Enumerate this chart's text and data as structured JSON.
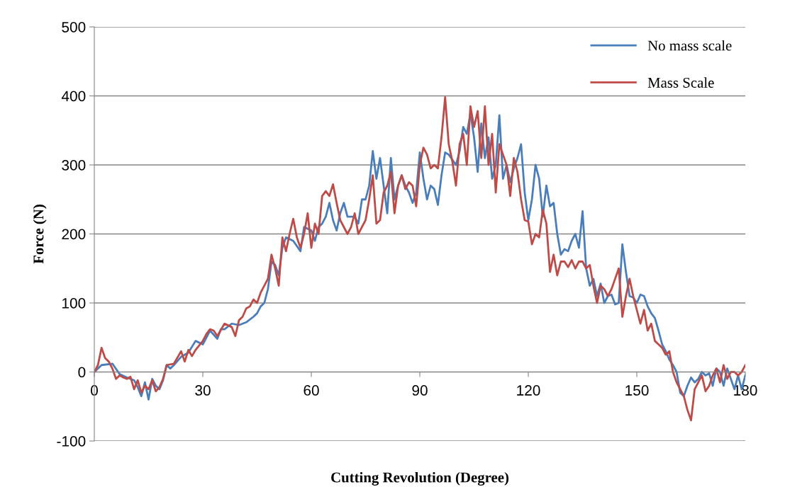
{
  "chart_data": {
    "type": "line",
    "xlabel": "Cutting Revolution (Degree)",
    "ylabel": "Force (N)",
    "xlim": [
      0,
      180
    ],
    "xticks": [
      0,
      30,
      60,
      90,
      120,
      150,
      180
    ],
    "ylim": [
      -100,
      500
    ],
    "yticks": [
      -100,
      0,
      100,
      200,
      300,
      400,
      500
    ],
    "grid": "y",
    "legend": "top right",
    "marker": "none",
    "line_style": "solid",
    "series": [
      {
        "name": "No mass scale",
        "color": "#4a7ebb",
        "x": [
          0,
          2,
          5,
          7,
          9,
          11,
          12,
          13,
          14,
          15,
          16,
          17,
          18,
          19,
          20,
          21,
          22,
          24,
          26,
          28,
          30,
          32,
          34,
          35,
          36,
          38,
          40,
          42,
          44,
          45,
          46,
          47,
          48,
          49,
          50,
          51,
          52,
          53,
          55,
          57,
          58,
          60,
          61,
          62,
          63,
          64,
          65,
          66,
          67,
          68,
          69,
          70,
          72,
          73,
          74,
          75,
          76,
          77,
          78,
          79,
          80,
          81,
          82,
          83,
          84,
          85,
          86,
          87,
          88,
          89,
          90,
          91,
          92,
          93,
          94,
          95,
          96,
          97,
          98,
          100,
          101,
          102,
          103,
          104,
          105,
          106,
          107,
          108,
          109,
          110,
          111,
          112,
          113,
          114,
          115,
          116,
          117,
          118,
          119,
          120,
          121,
          122,
          123,
          124,
          125,
          126,
          127,
          128,
          129,
          130,
          131,
          132,
          133,
          134,
          135,
          136,
          137,
          138,
          139,
          140,
          141,
          142,
          143,
          144,
          145,
          146,
          147,
          148,
          149,
          150,
          151,
          152,
          153,
          154,
          155,
          156,
          157,
          158,
          159,
          160,
          161,
          162,
          163,
          164,
          165,
          166,
          167,
          168,
          169,
          170,
          171,
          172,
          173,
          174,
          175,
          176,
          177,
          178,
          179,
          180
        ],
        "values": [
          0,
          10,
          12,
          -3,
          -8,
          -12,
          -22,
          -35,
          -15,
          -40,
          -10,
          -20,
          -25,
          -12,
          10,
          5,
          10,
          22,
          28,
          45,
          40,
          60,
          48,
          62,
          62,
          70,
          68,
          72,
          80,
          85,
          95,
          100,
          120,
          160,
          155,
          140,
          180,
          195,
          190,
          175,
          210,
          205,
          190,
          210,
          215,
          225,
          245,
          220,
          205,
          230,
          245,
          225,
          225,
          215,
          250,
          250,
          270,
          320,
          280,
          310,
          270,
          230,
          310,
          250,
          270,
          285,
          270,
          260,
          245,
          260,
          318,
          280,
          250,
          270,
          265,
          242,
          285,
          318,
          315,
          300,
          320,
          355,
          345,
          375,
          340,
          290,
          360,
          310,
          340,
          280,
          300,
          372,
          280,
          300,
          275,
          295,
          310,
          330,
          260,
          220,
          250,
          300,
          280,
          225,
          270,
          240,
          245,
          200,
          170,
          178,
          175,
          190,
          200,
          180,
          233,
          150,
          125,
          135,
          110,
          128,
          100,
          110,
          112,
          98,
          100,
          185,
          145,
          110,
          108,
          100,
          112,
          110,
          95,
          85,
          78,
          60,
          40,
          30,
          18,
          10,
          0,
          -30,
          -35,
          -20,
          -8,
          -15,
          -10,
          0,
          -5,
          -2,
          -20,
          5,
          0,
          -20,
          5,
          -10,
          -25,
          -5,
          -25,
          -5
        ]
      },
      {
        "name": "Mass Scale",
        "color": "#be4b48",
        "x": [
          0,
          1,
          2,
          3,
          4,
          5,
          6,
          7,
          8,
          9,
          10,
          11,
          12,
          13,
          14,
          15,
          16,
          17,
          18,
          19,
          20,
          22,
          24,
          25,
          26,
          27,
          28,
          30,
          31,
          32,
          33,
          34,
          36,
          38,
          39,
          40,
          41,
          42,
          43,
          44,
          45,
          46,
          47,
          48,
          49,
          50,
          51,
          52,
          53,
          54,
          55,
          56,
          57,
          58,
          59,
          60,
          61,
          62,
          63,
          64,
          65,
          66,
          67,
          68,
          69,
          70,
          71,
          72,
          73,
          75,
          76,
          77,
          78,
          79,
          80,
          81,
          82,
          83,
          84,
          85,
          86,
          87,
          88,
          89,
          90,
          91,
          92,
          93,
          94,
          95,
          96,
          97,
          98,
          99,
          100,
          101,
          102,
          103,
          104,
          105,
          106,
          107,
          108,
          109,
          110,
          111,
          112,
          113,
          114,
          115,
          116,
          117,
          118,
          119,
          120,
          121,
          122,
          123,
          124,
          125,
          126,
          127,
          128,
          129,
          130,
          131,
          132,
          133,
          134,
          135,
          136,
          137,
          138,
          139,
          140,
          141,
          142,
          143,
          144,
          145,
          146,
          147,
          148,
          149,
          150,
          151,
          152,
          153,
          154,
          155,
          156,
          157,
          158,
          159,
          160,
          161,
          162,
          163,
          164,
          165,
          166,
          167,
          168,
          169,
          170,
          171,
          172,
          173,
          174,
          175,
          176,
          177,
          178,
          179,
          180
        ],
        "values": [
          0,
          10,
          35,
          20,
          15,
          5,
          -10,
          -5,
          -8,
          -10,
          -7,
          -25,
          -12,
          -30,
          -20,
          -25,
          -12,
          -28,
          -22,
          -10,
          10,
          12,
          30,
          15,
          32,
          23,
          32,
          45,
          55,
          62,
          60,
          52,
          70,
          65,
          52,
          75,
          80,
          92,
          95,
          105,
          100,
          115,
          125,
          135,
          170,
          150,
          125,
          195,
          175,
          200,
          222,
          195,
          180,
          200,
          230,
          180,
          215,
          200,
          255,
          262,
          255,
          272,
          245,
          220,
          210,
          200,
          210,
          230,
          200,
          220,
          250,
          285,
          215,
          220,
          260,
          270,
          290,
          230,
          270,
          285,
          265,
          275,
          270,
          240,
          300,
          325,
          315,
          295,
          300,
          295,
          340,
          398,
          330,
          305,
          270,
          330,
          345,
          300,
          385,
          355,
          378,
          310,
          385,
          300,
          345,
          260,
          330,
          315,
          300,
          255,
          310,
          290,
          250,
          220,
          218,
          185,
          200,
          195,
          235,
          215,
          145,
          170,
          140,
          160,
          160,
          152,
          162,
          150,
          160,
          160,
          150,
          155,
          125,
          100,
          125,
          120,
          110,
          120,
          135,
          150,
          80,
          110,
          135,
          110,
          90,
          70,
          90,
          60,
          70,
          45,
          40,
          35,
          25,
          30,
          0,
          -15,
          -25,
          -35,
          -55,
          -70,
          -25,
          -15,
          -5,
          -28,
          -20,
          -5,
          5,
          -15,
          10,
          -10,
          0,
          0,
          -5,
          0,
          10
        ]
      }
    ]
  }
}
